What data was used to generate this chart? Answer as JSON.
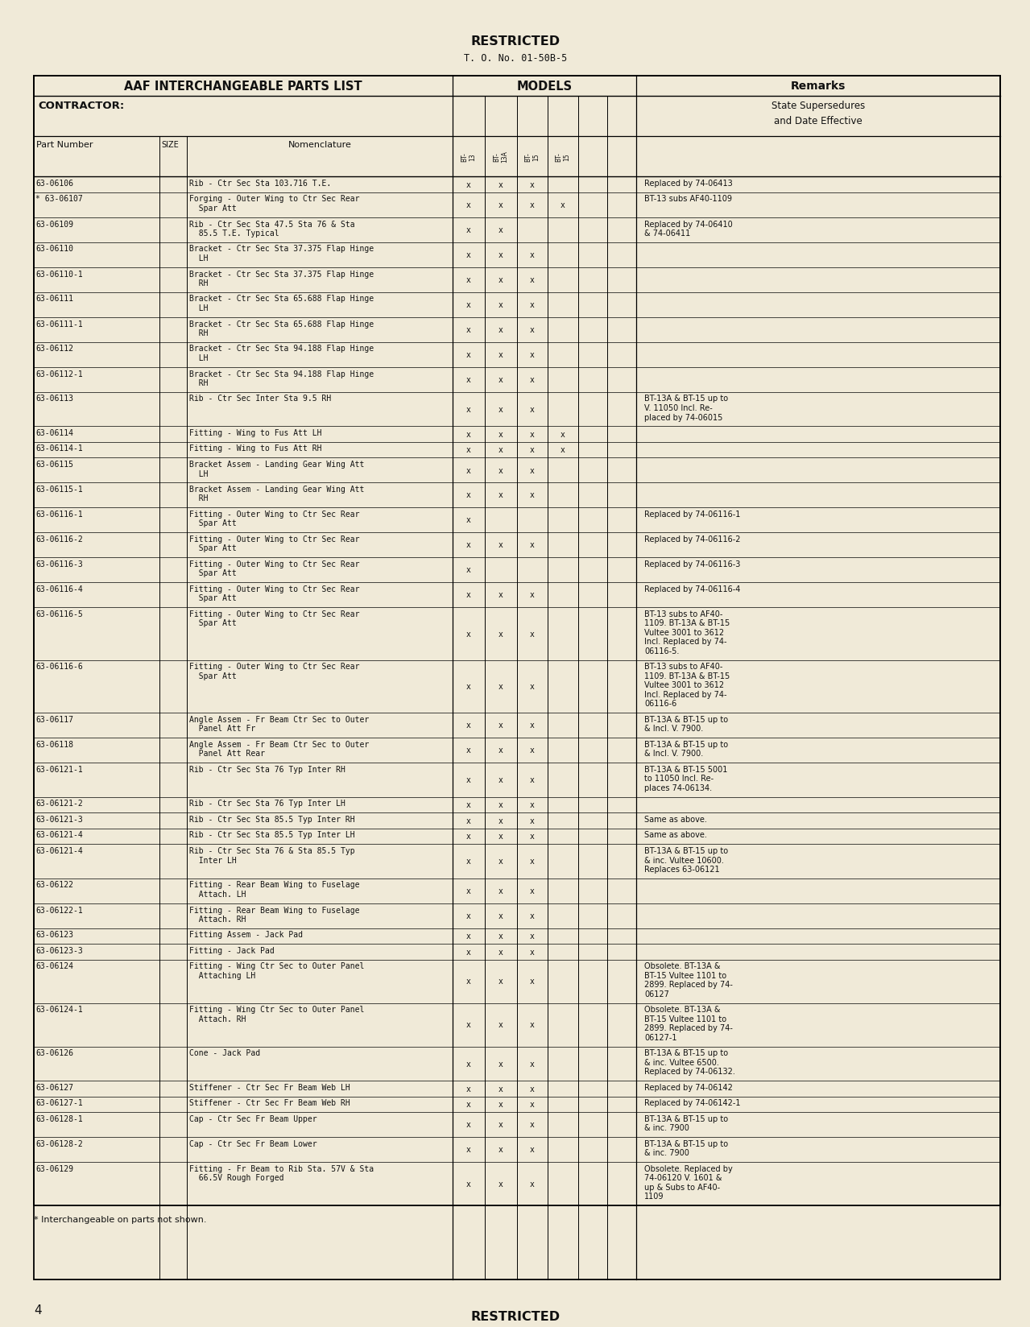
{
  "bg_color": "#f0ead8",
  "top_restricted": "RESTRICTED",
  "to_number": "T. O. No. 01-50B-5",
  "bottom_restricted": "RESTRICTED",
  "page_number": "4",
  "footer_note": "* Interchangeable on parts not shown.",
  "header_left": "AAF INTERCHANGEABLE PARTS LIST",
  "header_models": "MODELS",
  "header_remarks": "Remarks",
  "contractor": "CONTRACTOR:",
  "state_supersedures": "State Supersedures",
  "and_date": "and Date Effective",
  "col_part": "Part Number",
  "col_size": "SIZE",
  "col_nom": "Nomenclature",
  "rows": [
    {
      "part": "63-06106",
      "star": false,
      "nom": "Rib - Ctr Sec Sta 103.716 T.E.",
      "m": [
        1,
        1,
        1,
        0,
        0,
        0,
        0
      ],
      "rem": "Replaced by 74-06413"
    },
    {
      "part": "63-06107",
      "star": true,
      "nom": "Forging - Outer Wing to Ctr Sec Rear\n  Spar Att",
      "m": [
        1,
        1,
        1,
        1,
        0,
        0,
        0
      ],
      "rem": "BT-13 subs AF40-1109"
    },
    {
      "part": "63-06109",
      "star": false,
      "nom": "Rib - Ctr Sec Sta 47.5 Sta 76 & Sta\n  85.5 T.E. Typical",
      "m": [
        1,
        1,
        0,
        0,
        0,
        0,
        0
      ],
      "rem": "Replaced by 74-06410\n& 74-06411"
    },
    {
      "part": "63-06110",
      "star": false,
      "nom": "Bracket - Ctr Sec Sta 37.375 Flap Hinge\n  LH",
      "m": [
        1,
        1,
        1,
        0,
        0,
        0,
        0
      ],
      "rem": ""
    },
    {
      "part": "63-06110-1",
      "star": false,
      "nom": "Bracket - Ctr Sec Sta 37.375 Flap Hinge\n  RH",
      "m": [
        1,
        1,
        1,
        0,
        0,
        0,
        0
      ],
      "rem": ""
    },
    {
      "part": "63-06111",
      "star": false,
      "nom": "Bracket - Ctr Sec Sta 65.688 Flap Hinge\n  LH",
      "m": [
        1,
        1,
        1,
        0,
        0,
        0,
        0
      ],
      "rem": ""
    },
    {
      "part": "63-06111-1",
      "star": false,
      "nom": "Bracket - Ctr Sec Sta 65.688 Flap Hinge\n  RH",
      "m": [
        1,
        1,
        1,
        0,
        0,
        0,
        0
      ],
      "rem": ""
    },
    {
      "part": "63-06112",
      "star": false,
      "nom": "Bracket - Ctr Sec Sta 94.188 Flap Hinge\n  LH",
      "m": [
        1,
        1,
        1,
        0,
        0,
        0,
        0
      ],
      "rem": ""
    },
    {
      "part": "63-06112-1",
      "star": false,
      "nom": "Bracket - Ctr Sec Sta 94.188 Flap Hinge\n  RH",
      "m": [
        1,
        1,
        1,
        0,
        0,
        0,
        0
      ],
      "rem": ""
    },
    {
      "part": "63-06113",
      "star": false,
      "nom": "Rib - Ctr Sec Inter Sta 9.5 RH",
      "m": [
        1,
        1,
        1,
        0,
        0,
        0,
        0
      ],
      "rem": "BT-13A & BT-15 up to\nV. 11050 Incl. Re-\nplaced by 74-06015"
    },
    {
      "part": "63-06114",
      "star": false,
      "nom": "Fitting - Wing to Fus Att LH",
      "m": [
        1,
        1,
        1,
        1,
        0,
        0,
        0
      ],
      "rem": ""
    },
    {
      "part": "63-06114-1",
      "star": false,
      "nom": "Fitting - Wing to Fus Att RH",
      "m": [
        1,
        1,
        1,
        1,
        0,
        0,
        0
      ],
      "rem": ""
    },
    {
      "part": "63-06115",
      "star": false,
      "nom": "Bracket Assem - Landing Gear Wing Att\n  LH",
      "m": [
        1,
        1,
        1,
        0,
        0,
        0,
        0
      ],
      "rem": ""
    },
    {
      "part": "63-06115-1",
      "star": false,
      "nom": "Bracket Assem - Landing Gear Wing Att\n  RH",
      "m": [
        1,
        1,
        1,
        0,
        0,
        0,
        0
      ],
      "rem": ""
    },
    {
      "part": "63-06116-1",
      "star": false,
      "nom": "Fitting - Outer Wing to Ctr Sec Rear\n  Spar Att",
      "m": [
        1,
        0,
        0,
        0,
        0,
        0,
        0
      ],
      "rem": "Replaced by 74-06116-1"
    },
    {
      "part": "63-06116-2",
      "star": false,
      "nom": "Fitting - Outer Wing to Ctr Sec Rear\n  Spar Att",
      "m": [
        1,
        1,
        1,
        0,
        0,
        0,
        0
      ],
      "rem": "Replaced by 74-06116-2"
    },
    {
      "part": "63-06116-3",
      "star": false,
      "nom": "Fitting - Outer Wing to Ctr Sec Rear\n  Spar Att",
      "m": [
        1,
        0,
        0,
        0,
        0,
        0,
        0
      ],
      "rem": "Replaced by 74-06116-3"
    },
    {
      "part": "63-06116-4",
      "star": false,
      "nom": "Fitting - Outer Wing to Ctr Sec Rear\n  Spar Att",
      "m": [
        1,
        1,
        1,
        0,
        0,
        0,
        0
      ],
      "rem": "Replaced by 74-06116-4"
    },
    {
      "part": "63-06116-5",
      "star": false,
      "nom": "Fitting - Outer Wing to Ctr Sec Rear\n  Spar Att",
      "m": [
        1,
        1,
        1,
        0,
        0,
        0,
        0
      ],
      "rem": "BT-13 subs to AF40-\n1109. BT-13A & BT-15\nVultee 3001 to 3612\nIncl. Replaced by 74-\n06116-5."
    },
    {
      "part": "63-06116-6",
      "star": false,
      "nom": "Fitting - Outer Wing to Ctr Sec Rear\n  Spar Att",
      "m": [
        1,
        1,
        1,
        0,
        0,
        0,
        0
      ],
      "rem": "BT-13 subs to AF40-\n1109. BT-13A & BT-15\nVultee 3001 to 3612\nIncl. Replaced by 74-\n06116-6"
    },
    {
      "part": "63-06117",
      "star": false,
      "nom": "Angle Assem - Fr Beam Ctr Sec to Outer\n  Panel Att Fr",
      "m": [
        1,
        1,
        1,
        0,
        0,
        0,
        0
      ],
      "rem": "BT-13A & BT-15 up to\n& Incl. V. 7900."
    },
    {
      "part": "63-06118",
      "star": false,
      "nom": "Angle Assem - Fr Beam Ctr Sec to Outer\n  Panel Att Rear",
      "m": [
        1,
        1,
        1,
        0,
        0,
        0,
        0
      ],
      "rem": "BT-13A & BT-15 up to\n& Incl. V. 7900."
    },
    {
      "part": "63-06121-1",
      "star": false,
      "nom": "Rib - Ctr Sec Sta 76 Typ Inter RH",
      "m": [
        1,
        1,
        1,
        0,
        0,
        0,
        0
      ],
      "rem": "BT-13A & BT-15 5001\nto 11050 Incl. Re-\nplaces 74-06134."
    },
    {
      "part": "63-06121-2",
      "star": false,
      "nom": "Rib - Ctr Sec Sta 76 Typ Inter LH",
      "m": [
        1,
        1,
        1,
        0,
        0,
        0,
        0
      ],
      "rem": ""
    },
    {
      "part": "63-06121-3",
      "star": false,
      "nom": "Rib - Ctr Sec Sta 85.5 Typ Inter RH",
      "m": [
        1,
        1,
        1,
        0,
        0,
        0,
        0
      ],
      "rem": "Same as above."
    },
    {
      "part": "63-06121-4",
      "star": false,
      "nom": "Rib - Ctr Sec Sta 85.5 Typ Inter LH",
      "m": [
        1,
        1,
        1,
        0,
        0,
        0,
        0
      ],
      "rem": "Same as above."
    },
    {
      "part": "63-06121-4",
      "star": false,
      "nom": "Rib - Ctr Sec Sta 76 & Sta 85.5 Typ\n  Inter LH",
      "m": [
        1,
        1,
        1,
        0,
        0,
        0,
        0
      ],
      "rem": "BT-13A & BT-15 up to\n& inc. Vultee 10600.\nReplaces 63-06121"
    },
    {
      "part": "63-06122",
      "star": false,
      "nom": "Fitting - Rear Beam Wing to Fuselage\n  Attach. LH",
      "m": [
        1,
        1,
        1,
        0,
        0,
        0,
        0
      ],
      "rem": ""
    },
    {
      "part": "63-06122-1",
      "star": false,
      "nom": "Fitting - Rear Beam Wing to Fuselage\n  Attach. RH",
      "m": [
        1,
        1,
        1,
        0,
        0,
        0,
        0
      ],
      "rem": ""
    },
    {
      "part": "63-06123",
      "star": false,
      "nom": "Fitting Assem - Jack Pad",
      "m": [
        1,
        1,
        1,
        0,
        0,
        0,
        0
      ],
      "rem": ""
    },
    {
      "part": "63-06123-3",
      "star": false,
      "nom": "Fitting - Jack Pad",
      "m": [
        1,
        1,
        1,
        0,
        0,
        0,
        0
      ],
      "rem": ""
    },
    {
      "part": "63-06124",
      "star": false,
      "nom": "Fitting - Wing Ctr Sec to Outer Panel\n  Attaching LH",
      "m": [
        1,
        1,
        1,
        0,
        0,
        0,
        0
      ],
      "rem": "Obsolete. BT-13A &\nBT-15 Vultee 1101 to\n2899. Replaced by 74-\n06127"
    },
    {
      "part": "63-06124-1",
      "star": false,
      "nom": "Fitting - Wing Ctr Sec to Outer Panel\n  Attach. RH",
      "m": [
        1,
        1,
        1,
        0,
        0,
        0,
        0
      ],
      "rem": "Obsolete. BT-13A &\nBT-15 Vultee 1101 to\n2899. Replaced by 74-\n06127-1"
    },
    {
      "part": "63-06126",
      "star": false,
      "nom": "Cone - Jack Pad",
      "m": [
        1,
        1,
        1,
        0,
        0,
        0,
        0
      ],
      "rem": "BT-13A & BT-15 up to\n& inc. Vultee 6500.\nReplaced by 74-06132."
    },
    {
      "part": "63-06127",
      "star": false,
      "nom": "Stiffener - Ctr Sec Fr Beam Web LH",
      "m": [
        1,
        1,
        1,
        0,
        0,
        0,
        0
      ],
      "rem": "Replaced by 74-06142"
    },
    {
      "part": "63-06127-1",
      "star": false,
      "nom": "Stiffener - Ctr Sec Fr Beam Web RH",
      "m": [
        1,
        1,
        1,
        0,
        0,
        0,
        0
      ],
      "rem": "Replaced by 74-06142-1"
    },
    {
      "part": "63-06128-1",
      "star": false,
      "nom": "Cap - Ctr Sec Fr Beam Upper",
      "m": [
        1,
        1,
        1,
        0,
        0,
        0,
        0
      ],
      "rem": "BT-13A & BT-15 up to\n& inc. 7900"
    },
    {
      "part": "63-06128-2",
      "star": false,
      "nom": "Cap - Ctr Sec Fr Beam Lower",
      "m": [
        1,
        1,
        1,
        0,
        0,
        0,
        0
      ],
      "rem": "BT-13A & BT-15 up to\n& inc. 7900"
    },
    {
      "part": "63-06129",
      "star": false,
      "nom": "Fitting - Fr Beam to Rib Sta. 57V & Sta\n  66.5V Rough Forged",
      "m": [
        1,
        1,
        1,
        0,
        0,
        0,
        0
      ],
      "rem": "Obsolete. Replaced by\n74-06120 V. 1601 &\nup & Subs to AF40-\n1109"
    }
  ]
}
